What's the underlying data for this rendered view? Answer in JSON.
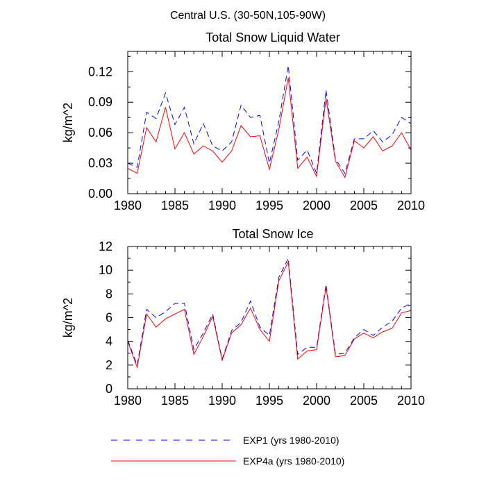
{
  "figure": {
    "title": "Central U.S. (30-50N,105-90W)"
  },
  "legend": {
    "placement": "bottom-left",
    "entries": [
      {
        "label": "EXP1 (yrs 1980-2010)",
        "color": "#0000ff",
        "style": "dashed"
      },
      {
        "label": "EXP4a (yrs 1980-2010)",
        "color": "#ff0000",
        "style": "solid"
      }
    ]
  },
  "chart_data": [
    {
      "type": "line",
      "title": "Total Snow Liquid Water",
      "xlabel": "",
      "ylabel": "kg/m^2",
      "xlim": [
        1980,
        2010
      ],
      "ylim": [
        0,
        0.14
      ],
      "xticks": [
        1980,
        1985,
        1990,
        1995,
        2000,
        2005,
        2010
      ],
      "xtick_labels": [
        "1980",
        "1985",
        "1990",
        "1995",
        "2000",
        "2005",
        "2010"
      ],
      "yticks": [
        0,
        0.03,
        0.06,
        0.09,
        0.12
      ],
      "ytick_labels": [
        "0.00",
        "0.03",
        "0.06",
        "0.09",
        "0.12"
      ],
      "grid": false,
      "x": [
        1980,
        1981,
        1982,
        1983,
        1984,
        1985,
        1986,
        1987,
        1988,
        1989,
        1990,
        1991,
        1992,
        1993,
        1994,
        1995,
        1996,
        1997,
        1998,
        1999,
        2000,
        2001,
        2002,
        2003,
        2004,
        2005,
        2006,
        2007,
        2008,
        2009,
        2010
      ],
      "series": [
        {
          "name": "EXP1 (yrs 1980-2010)",
          "color": "#0000ff",
          "style": "dashed",
          "values": [
            0.03,
            0.026,
            0.08,
            0.074,
            0.099,
            0.068,
            0.085,
            0.049,
            0.069,
            0.047,
            0.042,
            0.051,
            0.087,
            0.075,
            0.077,
            0.03,
            0.071,
            0.126,
            0.033,
            0.043,
            0.02,
            0.102,
            0.034,
            0.02,
            0.054,
            0.054,
            0.062,
            0.051,
            0.058,
            0.075,
            0.069
          ]
        },
        {
          "name": "EXP4a (yrs 1980-2010)",
          "color": "#ff0000",
          "style": "solid",
          "values": [
            0.025,
            0.02,
            0.065,
            0.051,
            0.085,
            0.044,
            0.06,
            0.039,
            0.047,
            0.042,
            0.031,
            0.042,
            0.067,
            0.056,
            0.057,
            0.024,
            0.063,
            0.114,
            0.025,
            0.036,
            0.017,
            0.094,
            0.032,
            0.016,
            0.052,
            0.045,
            0.056,
            0.042,
            0.047,
            0.06,
            0.043
          ]
        }
      ]
    },
    {
      "type": "line",
      "title": "Total Snow Ice",
      "xlabel": "",
      "ylabel": "kg/m^2",
      "xlim": [
        1980,
        2010
      ],
      "ylim": [
        0,
        12
      ],
      "xticks": [
        1980,
        1985,
        1990,
        1995,
        2000,
        2005,
        2010
      ],
      "xtick_labels": [
        "1980",
        "1985",
        "1990",
        "1995",
        "2000",
        "2005",
        "2010"
      ],
      "yticks": [
        0,
        2,
        4,
        6,
        8,
        10,
        12
      ],
      "ytick_labels": [
        "0",
        "2",
        "4",
        "6",
        "8",
        "10",
        "12"
      ],
      "grid": false,
      "x": [
        1980,
        1981,
        1982,
        1983,
        1984,
        1985,
        1986,
        1987,
        1988,
        1989,
        1990,
        1991,
        1992,
        1993,
        1994,
        1995,
        1996,
        1997,
        1998,
        1999,
        2000,
        2001,
        2002,
        2003,
        2004,
        2005,
        2006,
        2007,
        2008,
        2009,
        2010
      ],
      "series": [
        {
          "name": "EXP1 (yrs 1980-2010)",
          "color": "#0000ff",
          "style": "dashed",
          "values": [
            4.1,
            2.0,
            6.7,
            6.0,
            6.5,
            7.2,
            7.2,
            3.3,
            4.7,
            6.3,
            2.5,
            4.9,
            5.6,
            7.4,
            5.2,
            4.5,
            9.4,
            11.0,
            2.9,
            3.5,
            3.5,
            8.8,
            2.9,
            3.0,
            4.3,
            5.0,
            4.5,
            5.2,
            5.7,
            6.8,
            7.2
          ]
        },
        {
          "name": "EXP4a (yrs 1980-2010)",
          "color": "#ff0000",
          "style": "solid",
          "values": [
            4.0,
            1.8,
            6.3,
            5.2,
            5.9,
            6.3,
            6.7,
            2.9,
            4.4,
            6.1,
            2.4,
            4.7,
            5.4,
            6.8,
            5.0,
            4.0,
            9.1,
            10.7,
            2.5,
            3.2,
            3.3,
            8.6,
            2.7,
            2.8,
            4.2,
            4.7,
            4.3,
            4.8,
            5.1,
            6.4,
            6.6
          ]
        }
      ]
    }
  ]
}
